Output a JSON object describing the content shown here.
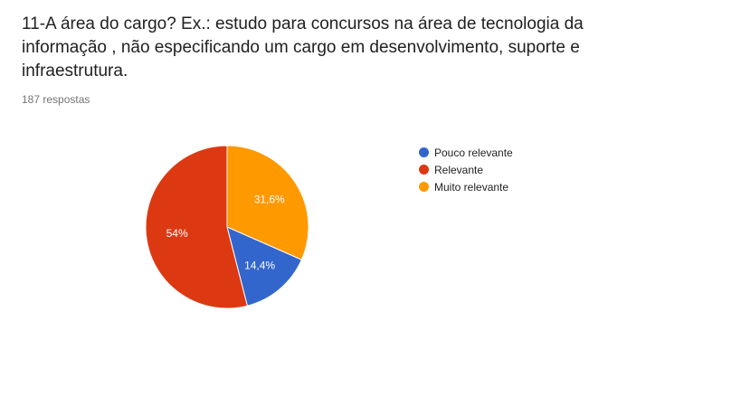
{
  "question": {
    "title": "11-A área do cargo? Ex.: estudo para concursos na área de tecnologia da informação , não especificando um cargo em desenvolvimento, suporte e infraestrutura.",
    "response_count": "187 respostas"
  },
  "chart_data": {
    "type": "pie",
    "title": "",
    "start": "top",
    "direction": "clockwise",
    "legend_placement": "right",
    "slices": [
      {
        "name": "Muito relevante",
        "value": 31.6,
        "label": "31,6%",
        "color": "#ff9900"
      },
      {
        "name": "Pouco relevante",
        "value": 14.4,
        "label": "14,4%",
        "color": "#3366cc"
      },
      {
        "name": "Relevante",
        "value": 54,
        "label": "54%",
        "color": "#dc3912"
      }
    ],
    "legend": [
      {
        "name": "Pouco relevante",
        "color": "#3366cc"
      },
      {
        "name": "Relevante",
        "color": "#dc3912"
      },
      {
        "name": "Muito relevante",
        "color": "#ff9900"
      }
    ]
  }
}
